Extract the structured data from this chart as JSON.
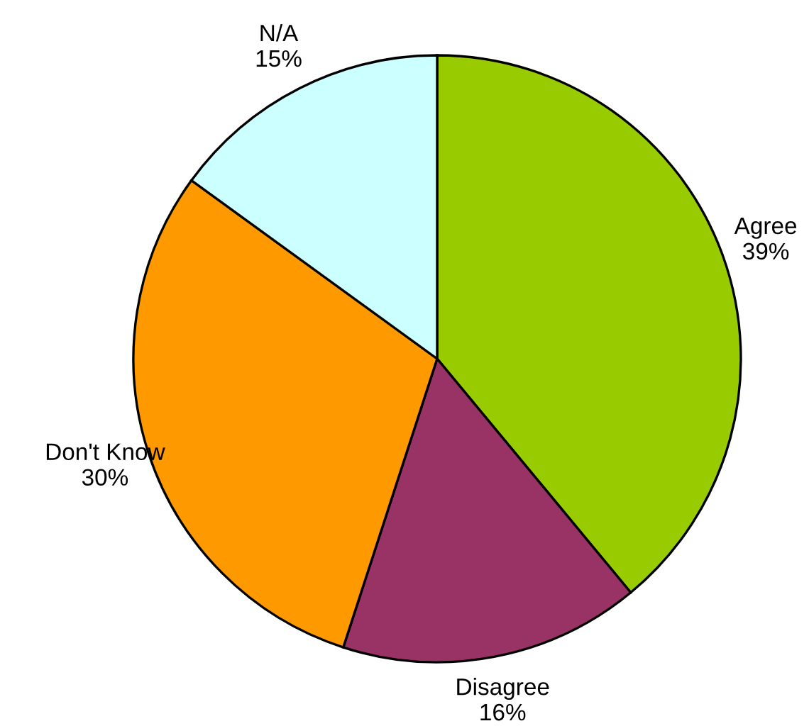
{
  "chart_data": {
    "type": "pie",
    "categories": [
      "Agree",
      "Disagree",
      "Don't Know",
      "N/A"
    ],
    "values": [
      39,
      16,
      30,
      15
    ],
    "value_labels": [
      "39%",
      "16%",
      "30%",
      "15%"
    ],
    "colors": [
      "#99cc00",
      "#993366",
      "#ff9900",
      "#ccffff"
    ],
    "legend": false
  }
}
